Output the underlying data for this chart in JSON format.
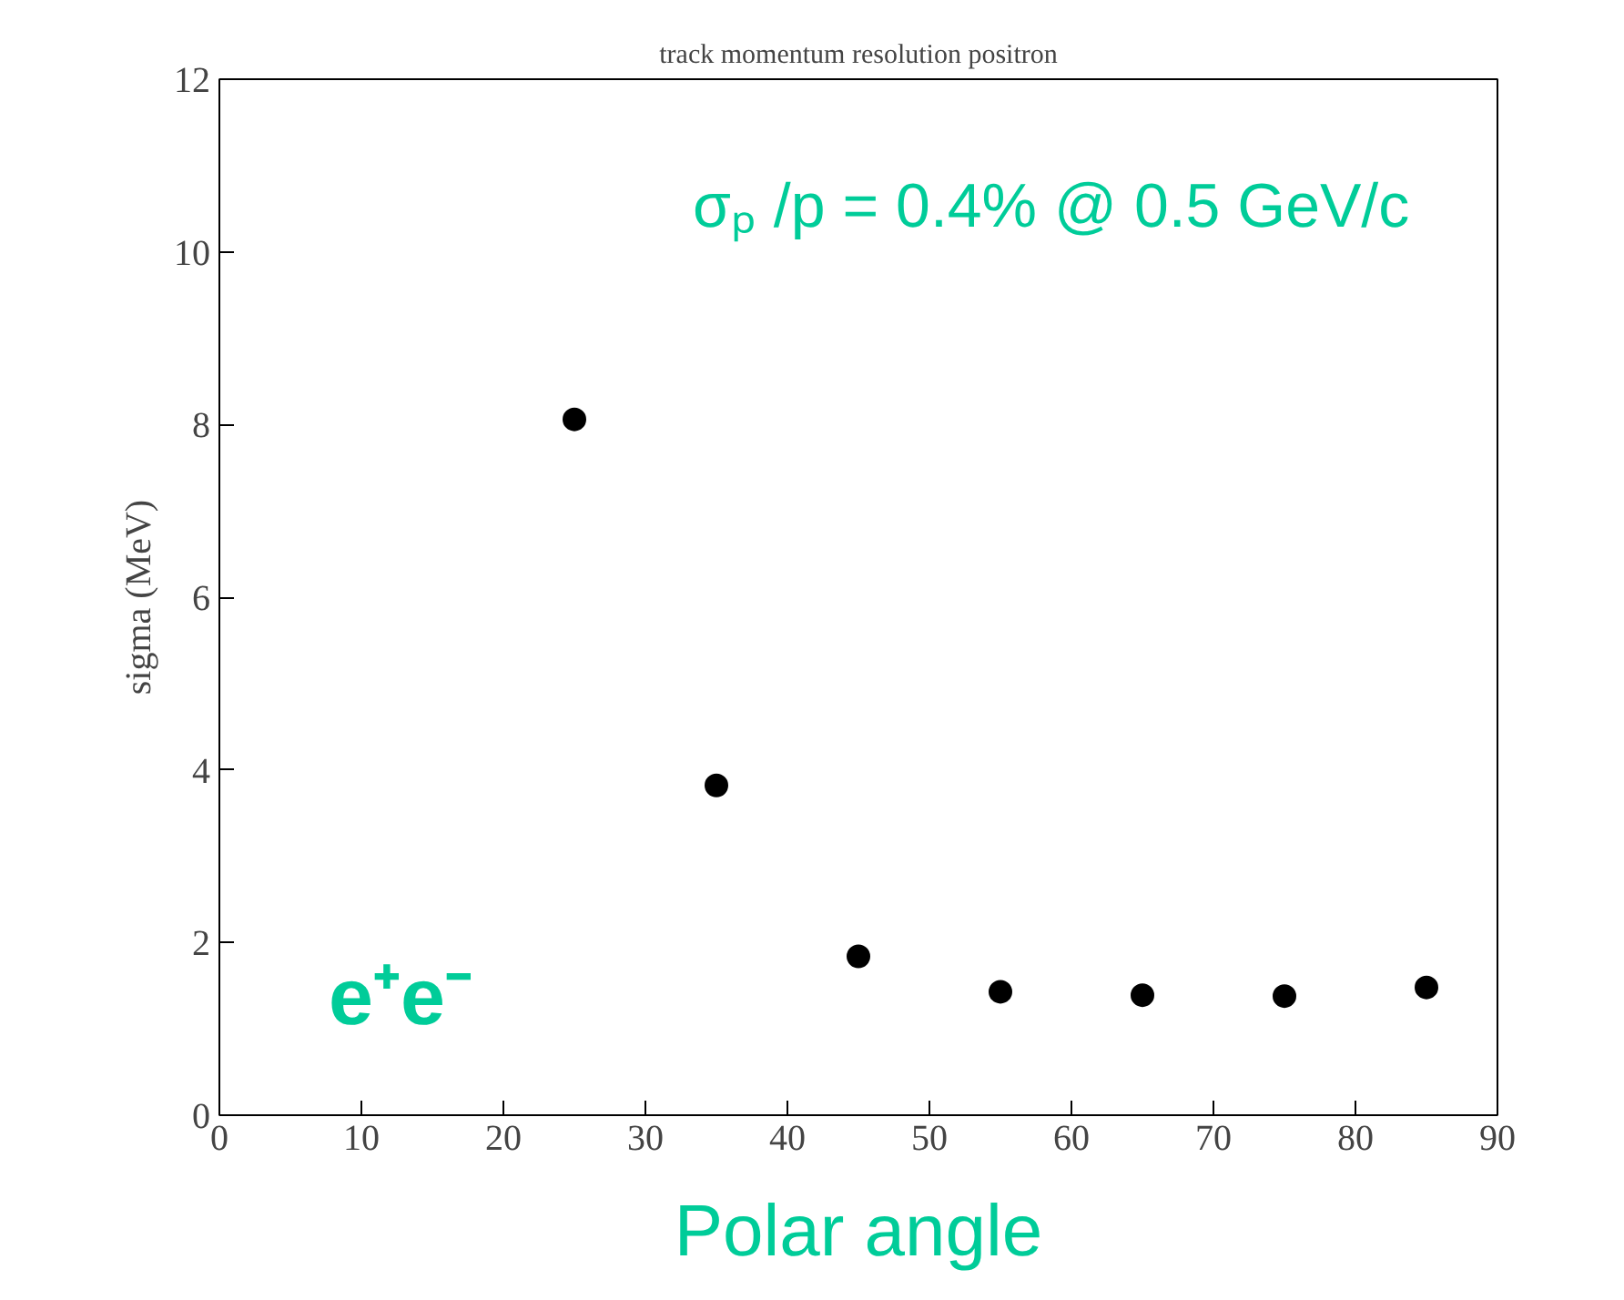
{
  "chart_data": {
    "type": "scatter",
    "title": "track momentum resolution positron",
    "xlabel": "Polar angle",
    "ylabel": "sigma (MeV)",
    "x": [
      25,
      35,
      45,
      55,
      65,
      75,
      85
    ],
    "values": [
      8.06,
      3.82,
      1.84,
      1.43,
      1.39,
      1.38,
      1.48
    ],
    "color": "#000000",
    "marker": "circle",
    "grid": false,
    "xlim": [
      0,
      90
    ],
    "xticks": [
      0,
      10,
      20,
      30,
      40,
      50,
      60,
      70,
      80,
      90
    ],
    "ylim": [
      0,
      12
    ],
    "yticks": [
      0,
      2,
      4,
      6,
      8,
      10,
      12
    ],
    "annotations": [
      "σₚ /p = 0.4% @ 0.5 GeV/c",
      "e⁺e⁻"
    ]
  }
}
